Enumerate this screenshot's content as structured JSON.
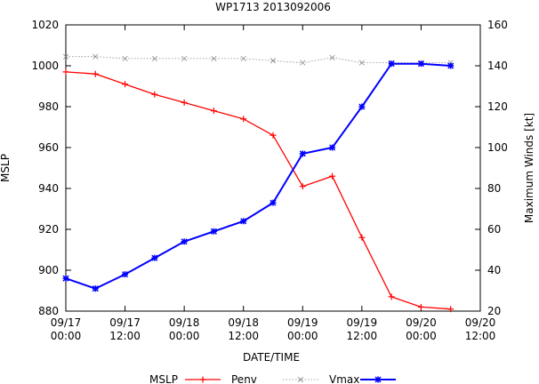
{
  "chart_data": {
    "type": "line",
    "title": "WP1713 2013092006",
    "xlabel": "DATE/TIME",
    "ylabel_left": "MSLP",
    "ylabel_right": "Maximum Winds [kt]",
    "x_tick_labels": [
      [
        "09/17",
        "00:00"
      ],
      [
        "09/17",
        "12:00"
      ],
      [
        "09/18",
        "00:00"
      ],
      [
        "09/18",
        "12:00"
      ],
      [
        "09/19",
        "00:00"
      ],
      [
        "09/19",
        "12:00"
      ],
      [
        "09/20",
        "00:00"
      ],
      [
        "09/20",
        "12:00"
      ]
    ],
    "x_hours": [
      0,
      6,
      12,
      18,
      24,
      30,
      36,
      42,
      48,
      54,
      60,
      66,
      72,
      78
    ],
    "xlim_hours": [
      0,
      84
    ],
    "ylim_left": [
      880,
      1020
    ],
    "yticks_left": [
      880,
      900,
      920,
      940,
      960,
      980,
      1000,
      1020
    ],
    "ylim_right": [
      20,
      160
    ],
    "yticks_right": [
      20,
      40,
      60,
      80,
      100,
      120,
      140,
      160
    ],
    "series": [
      {
        "name": "Penv",
        "axis": "left",
        "color": "#ff0000",
        "style": "solid",
        "marker": "plus",
        "values": [
          997,
          996,
          991,
          986,
          982,
          978,
          974,
          966,
          941,
          946,
          916,
          887,
          882,
          881
        ]
      },
      {
        "name": "Vmax",
        "axis": "left",
        "color": "#888888",
        "style": "dotted",
        "marker": "x",
        "values": [
          1004.5,
          1004.5,
          1003.5,
          1003.5,
          1003.5,
          1003.5,
          1003.5,
          1002.5,
          1001.5,
          1004,
          1001.5,
          1001.5,
          1001.5,
          1001.5
        ]
      },
      {
        "name": "",
        "axis": "right",
        "color": "#0000ff",
        "style": "solid",
        "marker": "star",
        "values": [
          36,
          31,
          38,
          46,
          54,
          59,
          64,
          73,
          97,
          100,
          120,
          141,
          141,
          140
        ]
      }
    ],
    "legend": {
      "title": "MSLP",
      "placement": "bottom"
    },
    "grid": false
  }
}
